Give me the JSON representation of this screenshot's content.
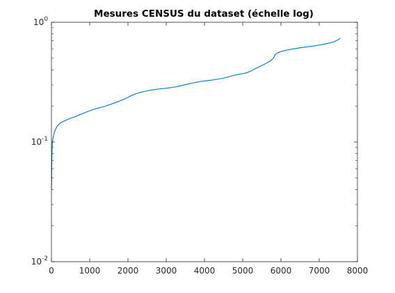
{
  "chart_data": {
    "type": "line",
    "title": "Mesures CENSUS du dataset (échelle log)",
    "xlabel": "",
    "ylabel": "",
    "xlim": [
      0,
      8000
    ],
    "ylim": [
      0.01,
      1
    ],
    "yscale": "log",
    "grid": false,
    "legend": "none",
    "x_ticks": [
      0,
      1000,
      2000,
      3000,
      4000,
      5000,
      6000,
      7000,
      8000
    ],
    "x_tick_labels": [
      "0",
      "1000",
      "2000",
      "3000",
      "4000",
      "5000",
      "6000",
      "7000",
      "8000"
    ],
    "y_ticks": [
      0.01,
      0.1,
      1
    ],
    "y_tick_labels": [
      {
        "base": "10",
        "exp": "-2"
      },
      {
        "base": "10",
        "exp": "-1"
      },
      {
        "base": "10",
        "exp": "0"
      }
    ],
    "series": [
      {
        "color": "#0072bd",
        "x": [
          1,
          8,
          15,
          25,
          40,
          60,
          80,
          100,
          130,
          160,
          200,
          250,
          300,
          400,
          500,
          600,
          700,
          800,
          900,
          1000,
          1100,
          1200,
          1300,
          1400,
          1500,
          1600,
          1700,
          1800,
          1900,
          2000,
          2100,
          2200,
          2300,
          2400,
          2500,
          2600,
          2700,
          2800,
          2900,
          3000,
          3100,
          3200,
          3300,
          3400,
          3500,
          3600,
          3700,
          3800,
          3900,
          4000,
          4100,
          4200,
          4300,
          4400,
          4500,
          4600,
          4700,
          4800,
          4900,
          5000,
          5100,
          5200,
          5300,
          5400,
          5500,
          5600,
          5700,
          5800,
          5850,
          5900,
          6000,
          6100,
          6200,
          6300,
          6400,
          6500,
          6600,
          6700,
          6800,
          6900,
          7000,
          7100,
          7200,
          7300,
          7400,
          7500,
          7550
        ],
        "values": [
          0.04,
          0.065,
          0.085,
          0.1,
          0.108,
          0.115,
          0.121,
          0.126,
          0.132,
          0.137,
          0.141,
          0.145,
          0.148,
          0.153,
          0.158,
          0.162,
          0.167,
          0.172,
          0.177,
          0.182,
          0.187,
          0.191,
          0.195,
          0.199,
          0.204,
          0.209,
          0.215,
          0.221,
          0.228,
          0.236,
          0.245,
          0.252,
          0.258,
          0.263,
          0.267,
          0.271,
          0.274,
          0.277,
          0.279,
          0.281,
          0.284,
          0.287,
          0.291,
          0.296,
          0.301,
          0.306,
          0.311,
          0.316,
          0.32,
          0.323,
          0.326,
          0.329,
          0.333,
          0.337,
          0.342,
          0.348,
          0.355,
          0.362,
          0.368,
          0.372,
          0.378,
          0.39,
          0.405,
          0.42,
          0.435,
          0.452,
          0.47,
          0.5,
          0.535,
          0.553,
          0.57,
          0.58,
          0.59,
          0.598,
          0.605,
          0.612,
          0.618,
          0.624,
          0.63,
          0.637,
          0.645,
          0.653,
          0.663,
          0.675,
          0.69,
          0.715,
          0.735
        ]
      }
    ]
  }
}
